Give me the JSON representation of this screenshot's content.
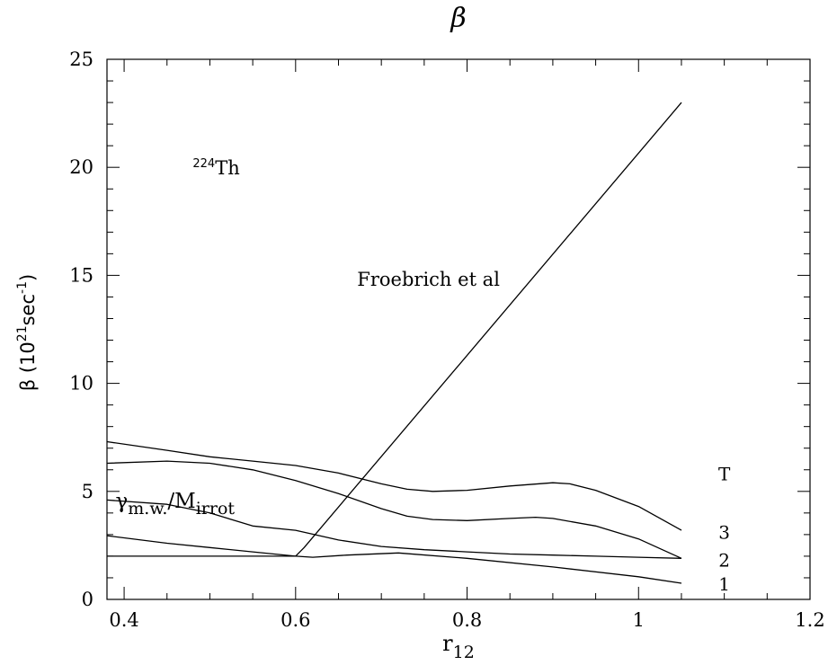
{
  "chart_data": {
    "type": "line",
    "title": "β",
    "xlabel": {
      "main": "r",
      "sub": "12"
    },
    "ylabel": {
      "main": "β (10",
      "sup1": "21",
      "mid": "sec",
      "sup2": "-1",
      "tail": ")"
    },
    "xlim": [
      0.38,
      1.2
    ],
    "ylim": [
      0,
      25
    ],
    "x_ticks": [
      {
        "value": 0.4,
        "label": "0.4"
      },
      {
        "value": 0.6,
        "label": "0.6"
      },
      {
        "value": 0.8,
        "label": "0.8"
      },
      {
        "value": 1.0,
        "label": "1"
      },
      {
        "value": 1.2,
        "label": "1.2"
      }
    ],
    "y_ticks": [
      {
        "value": 0,
        "label": "0"
      },
      {
        "value": 5,
        "label": "5"
      },
      {
        "value": 10,
        "label": "10"
      },
      {
        "value": 15,
        "label": "15"
      },
      {
        "value": 20,
        "label": "20"
      },
      {
        "value": 25,
        "label": "25"
      }
    ],
    "annotations": {
      "nucleus": {
        "sup": "224",
        "text": "Th",
        "x": 0.48,
        "y": 20.0
      },
      "froebrich": {
        "text": "Froebrich et al",
        "x": 0.755,
        "y": 14.8
      },
      "gamma": {
        "main": "γ",
        "sub1": "m.w.",
        "slash": "/M",
        "sub2": "irrot",
        "x": 0.39,
        "y": 4.4
      },
      "T_header": {
        "text": "T",
        "x": 1.1,
        "y": 5.8
      },
      "T_labels": [
        {
          "text": "3",
          "x": 1.1,
          "y": 3.1
        },
        {
          "text": "2",
          "x": 1.1,
          "y": 1.8
        },
        {
          "text": "1",
          "x": 1.1,
          "y": 0.7
        }
      ]
    },
    "series": [
      {
        "x": [
          0.38,
          0.6,
          0.61,
          1.05
        ],
        "y": [
          2.0,
          2.0,
          2.4,
          23.0
        ]
      },
      {
        "x": [
          0.38,
          0.45,
          0.5,
          0.55,
          0.6,
          0.65,
          0.7,
          0.73,
          0.76,
          0.8,
          0.85,
          0.9,
          0.92,
          0.95,
          1.0,
          1.05
        ],
        "y": [
          7.3,
          6.9,
          6.6,
          6.4,
          6.2,
          5.85,
          5.35,
          5.1,
          5.0,
          5.05,
          5.25,
          5.4,
          5.35,
          5.05,
          4.3,
          3.2
        ]
      },
      {
        "x": [
          0.38,
          0.45,
          0.5,
          0.55,
          0.6,
          0.65,
          0.7,
          0.73,
          0.76,
          0.8,
          0.85,
          0.88,
          0.9,
          0.95,
          1.0,
          1.05
        ],
        "y": [
          6.3,
          6.4,
          6.3,
          6.0,
          5.5,
          4.9,
          4.2,
          3.85,
          3.7,
          3.65,
          3.75,
          3.8,
          3.75,
          3.4,
          2.8,
          1.9
        ]
      },
      {
        "x": [
          0.38,
          0.45,
          0.5,
          0.55,
          0.6,
          0.65,
          0.7,
          0.75,
          0.8,
          0.85,
          0.9,
          0.95,
          1.0,
          1.05
        ],
        "y": [
          4.6,
          4.4,
          4.0,
          3.4,
          3.2,
          2.75,
          2.45,
          2.3,
          2.2,
          2.1,
          2.05,
          2.0,
          1.95,
          1.9
        ]
      },
      {
        "x": [
          0.38,
          0.45,
          0.5,
          0.55,
          0.6,
          0.62,
          0.66,
          0.72,
          0.8,
          0.9,
          1.0,
          1.05
        ],
        "y": [
          2.95,
          2.6,
          2.4,
          2.2,
          2.0,
          1.95,
          2.05,
          2.15,
          1.9,
          1.5,
          1.05,
          0.75
        ]
      }
    ]
  }
}
